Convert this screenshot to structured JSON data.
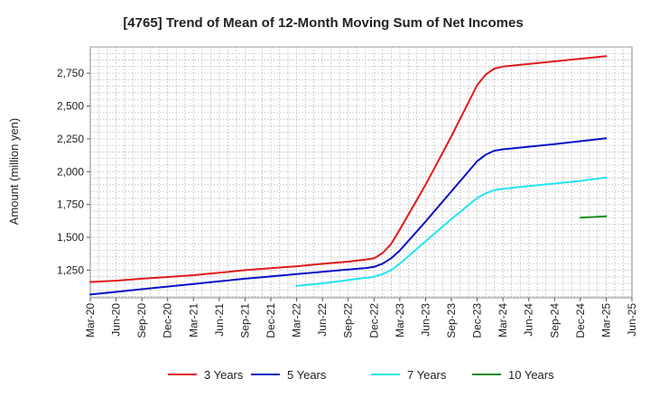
{
  "chart_data": {
    "type": "line",
    "title": "[4765]  Trend of Mean of 12-Month Moving Sum of Net Incomes",
    "ylabel": "Amount (million yen)",
    "xlabel": "",
    "x_ticks": [
      "Mar-20",
      "Jun-20",
      "Sep-20",
      "Dec-20",
      "Mar-21",
      "Jun-21",
      "Sep-21",
      "Dec-21",
      "Mar-22",
      "Jun-22",
      "Sep-22",
      "Dec-22",
      "Mar-23",
      "Jun-23",
      "Sep-23",
      "Dec-23",
      "Mar-24",
      "Jun-24",
      "Sep-24",
      "Dec-24",
      "Mar-25",
      "Jun-25"
    ],
    "y_ticks": [
      1250,
      1500,
      1750,
      2000,
      2250,
      2500,
      2750
    ],
    "y_tick_labels": [
      "1,250",
      "1,500",
      "1,750",
      "2,000",
      "2,250",
      "2,500",
      "2,750"
    ],
    "ylim": [
      1040,
      2950
    ],
    "grid": true,
    "legend_position": "bottom",
    "series": [
      {
        "name": "3 Years",
        "color": "#e31a1c",
        "points": [
          [
            "Mar-20",
            1160
          ],
          [
            "Jun-20",
            1170
          ],
          [
            "Sep-20",
            1185
          ],
          [
            "Dec-20",
            1198
          ],
          [
            "Mar-21",
            1212
          ],
          [
            "Jun-21",
            1230
          ],
          [
            "Sep-21",
            1250
          ],
          [
            "Dec-21",
            1265
          ],
          [
            "Mar-22",
            1280
          ],
          [
            "Jun-22",
            1298
          ],
          [
            "Sep-22",
            1315
          ],
          [
            "Nov-22",
            1330
          ],
          [
            "Dec-22",
            1340
          ],
          [
            "Jan-23",
            1380
          ],
          [
            "Feb-23",
            1450
          ],
          [
            "Mar-23",
            1560
          ],
          [
            "Jun-23",
            1900
          ],
          [
            "Sep-23",
            2270
          ],
          [
            "Dec-23",
            2660
          ],
          [
            "Jan-24",
            2740
          ],
          [
            "Feb-24",
            2785
          ],
          [
            "Mar-24",
            2800
          ],
          [
            "Jun-24",
            2820
          ],
          [
            "Sep-24",
            2840
          ],
          [
            "Dec-24",
            2860
          ],
          [
            "Mar-25",
            2880
          ]
        ]
      },
      {
        "name": "5 Years",
        "color": "#0a12c8",
        "points": [
          [
            "Mar-20",
            1065
          ],
          [
            "Jun-20",
            1085
          ],
          [
            "Sep-20",
            1105
          ],
          [
            "Dec-20",
            1125
          ],
          [
            "Mar-21",
            1145
          ],
          [
            "Jun-21",
            1165
          ],
          [
            "Sep-21",
            1185
          ],
          [
            "Dec-21",
            1202
          ],
          [
            "Mar-22",
            1220
          ],
          [
            "Jun-22",
            1238
          ],
          [
            "Sep-22",
            1255
          ],
          [
            "Nov-22",
            1266
          ],
          [
            "Dec-22",
            1275
          ],
          [
            "Jan-23",
            1300
          ],
          [
            "Feb-23",
            1340
          ],
          [
            "Mar-23",
            1400
          ],
          [
            "Jun-23",
            1620
          ],
          [
            "Sep-23",
            1850
          ],
          [
            "Dec-23",
            2080
          ],
          [
            "Jan-24",
            2130
          ],
          [
            "Feb-24",
            2160
          ],
          [
            "Mar-24",
            2170
          ],
          [
            "Jun-24",
            2190
          ],
          [
            "Sep-24",
            2210
          ],
          [
            "Dec-24",
            2232
          ],
          [
            "Mar-25",
            2255
          ]
        ]
      },
      {
        "name": "7 Years",
        "color": "#22e5f0",
        "points": [
          [
            "Mar-22",
            1130
          ],
          [
            "Jun-22",
            1150
          ],
          [
            "Sep-22",
            1175
          ],
          [
            "Dec-22",
            1200
          ],
          [
            "Jan-23",
            1220
          ],
          [
            "Feb-23",
            1250
          ],
          [
            "Mar-23",
            1300
          ],
          [
            "Jun-23",
            1470
          ],
          [
            "Sep-23",
            1640
          ],
          [
            "Dec-23",
            1800
          ],
          [
            "Jan-24",
            1835
          ],
          [
            "Feb-24",
            1860
          ],
          [
            "Mar-24",
            1870
          ],
          [
            "Jun-24",
            1890
          ],
          [
            "Sep-24",
            1910
          ],
          [
            "Dec-24",
            1930
          ],
          [
            "Mar-25",
            1955
          ]
        ]
      },
      {
        "name": "10 Years",
        "color": "#1e8a22",
        "points": [
          [
            "Dec-24",
            1650
          ],
          [
            "Mar-25",
            1660
          ]
        ]
      }
    ]
  }
}
